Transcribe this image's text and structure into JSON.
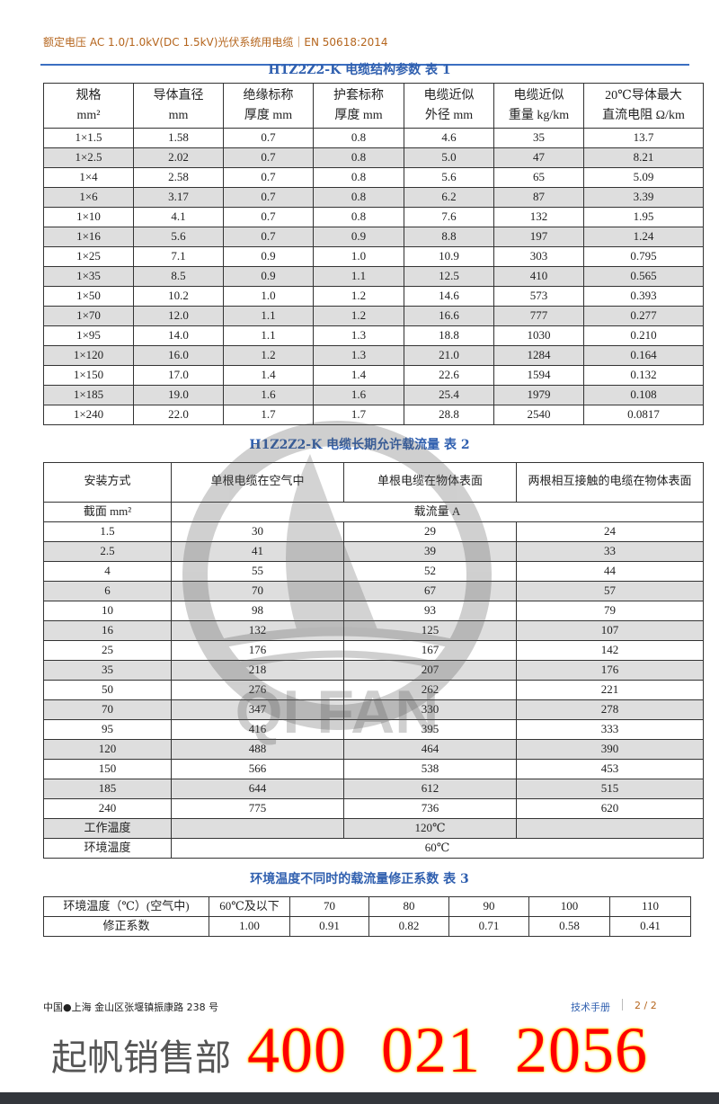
{
  "header": {
    "text": "额定电压 AC 1.0/1.0kV(DC 1.5kV)光伏系统用电缆｜EN 50618:2014",
    "line_color": "#3b6fc1"
  },
  "table1": {
    "title": "H1Z2Z2-K 电缆结构参数  表 1",
    "headers": [
      [
        "规格",
        "mm²"
      ],
      [
        "导体直径",
        "mm"
      ],
      [
        "绝缘标称",
        "厚度 mm"
      ],
      [
        "护套标称",
        "厚度 mm"
      ],
      [
        "电缆近似",
        "外径 mm"
      ],
      [
        "电缆近似",
        "重量 kg/km"
      ],
      [
        "20℃导体最大",
        "直流电阻 Ω/km"
      ]
    ],
    "rows": [
      [
        "1×1.5",
        "1.58",
        "0.7",
        "0.8",
        "4.6",
        "35",
        "13.7"
      ],
      [
        "1×2.5",
        "2.02",
        "0.7",
        "0.8",
        "5.0",
        "47",
        "8.21"
      ],
      [
        "1×4",
        "2.58",
        "0.7",
        "0.8",
        "5.6",
        "65",
        "5.09"
      ],
      [
        "1×6",
        "3.17",
        "0.7",
        "0.8",
        "6.2",
        "87",
        "3.39"
      ],
      [
        "1×10",
        "4.1",
        "0.7",
        "0.8",
        "7.6",
        "132",
        "1.95"
      ],
      [
        "1×16",
        "5.6",
        "0.7",
        "0.9",
        "8.8",
        "197",
        "1.24"
      ],
      [
        "1×25",
        "7.1",
        "0.9",
        "1.0",
        "10.9",
        "303",
        "0.795"
      ],
      [
        "1×35",
        "8.5",
        "0.9",
        "1.1",
        "12.5",
        "410",
        "0.565"
      ],
      [
        "1×50",
        "10.2",
        "1.0",
        "1.2",
        "14.6",
        "573",
        "0.393"
      ],
      [
        "1×70",
        "12.0",
        "1.1",
        "1.2",
        "16.6",
        "777",
        "0.277"
      ],
      [
        "1×95",
        "14.0",
        "1.1",
        "1.3",
        "18.8",
        "1030",
        "0.210"
      ],
      [
        "1×120",
        "16.0",
        "1.2",
        "1.3",
        "21.0",
        "1284",
        "0.164"
      ],
      [
        "1×150",
        "17.0",
        "1.4",
        "1.4",
        "22.6",
        "1594",
        "0.132"
      ],
      [
        "1×185",
        "19.0",
        "1.6",
        "1.6",
        "25.4",
        "1979",
        "0.108"
      ],
      [
        "1×240",
        "22.0",
        "1.7",
        "1.7",
        "28.8",
        "2540",
        "0.0817"
      ]
    ]
  },
  "table2": {
    "title": "H1Z2Z2-K 电缆长期允许载流量  表 2",
    "headers": [
      "安装方式",
      "单根电缆在空气中",
      "单根电缆在物体表面",
      "两根相互接触的电缆在物体表面"
    ],
    "subheader": {
      "label": "截面 mm²",
      "unit": "载流量 A"
    },
    "rows": [
      [
        "1.5",
        "30",
        "29",
        "24"
      ],
      [
        "2.5",
        "41",
        "39",
        "33"
      ],
      [
        "4",
        "55",
        "52",
        "44"
      ],
      [
        "6",
        "70",
        "67",
        "57"
      ],
      [
        "10",
        "98",
        "93",
        "79"
      ],
      [
        "16",
        "132",
        "125",
        "107"
      ],
      [
        "25",
        "176",
        "167",
        "142"
      ],
      [
        "35",
        "218",
        "207",
        "176"
      ],
      [
        "50",
        "276",
        "262",
        "221"
      ],
      [
        "70",
        "347",
        "330",
        "278"
      ],
      [
        "95",
        "416",
        "395",
        "333"
      ],
      [
        "120",
        "488",
        "464",
        "390"
      ],
      [
        "150",
        "566",
        "538",
        "453"
      ],
      [
        "185",
        "644",
        "612",
        "515"
      ],
      [
        "240",
        "775",
        "736",
        "620"
      ]
    ],
    "working_temp": {
      "label": "工作温度",
      "value": "120℃"
    },
    "ambient_temp": {
      "label": "环境温度",
      "value": "60℃"
    }
  },
  "table3": {
    "title": "环境温度不同时的载流量修正系数  表 3",
    "rows": [
      [
        "环境温度（℃）(空气中)",
        "60℃及以下",
        "70",
        "80",
        "90",
        "100",
        "110"
      ],
      [
        "修正系数",
        "1.00",
        "0.91",
        "0.82",
        "0.71",
        "0.58",
        "0.41"
      ]
    ]
  },
  "watermark": {
    "text": "QI FAN",
    "char": "起帆"
  },
  "footer": {
    "address": "中国●上海  金山区张堰镇振康路 238 号",
    "manual": "技术手册",
    "page": "2 / 2"
  },
  "sales": {
    "label": "起帆销售部",
    "phone": "400  021  2056",
    "phone_color": "#ff0000"
  }
}
